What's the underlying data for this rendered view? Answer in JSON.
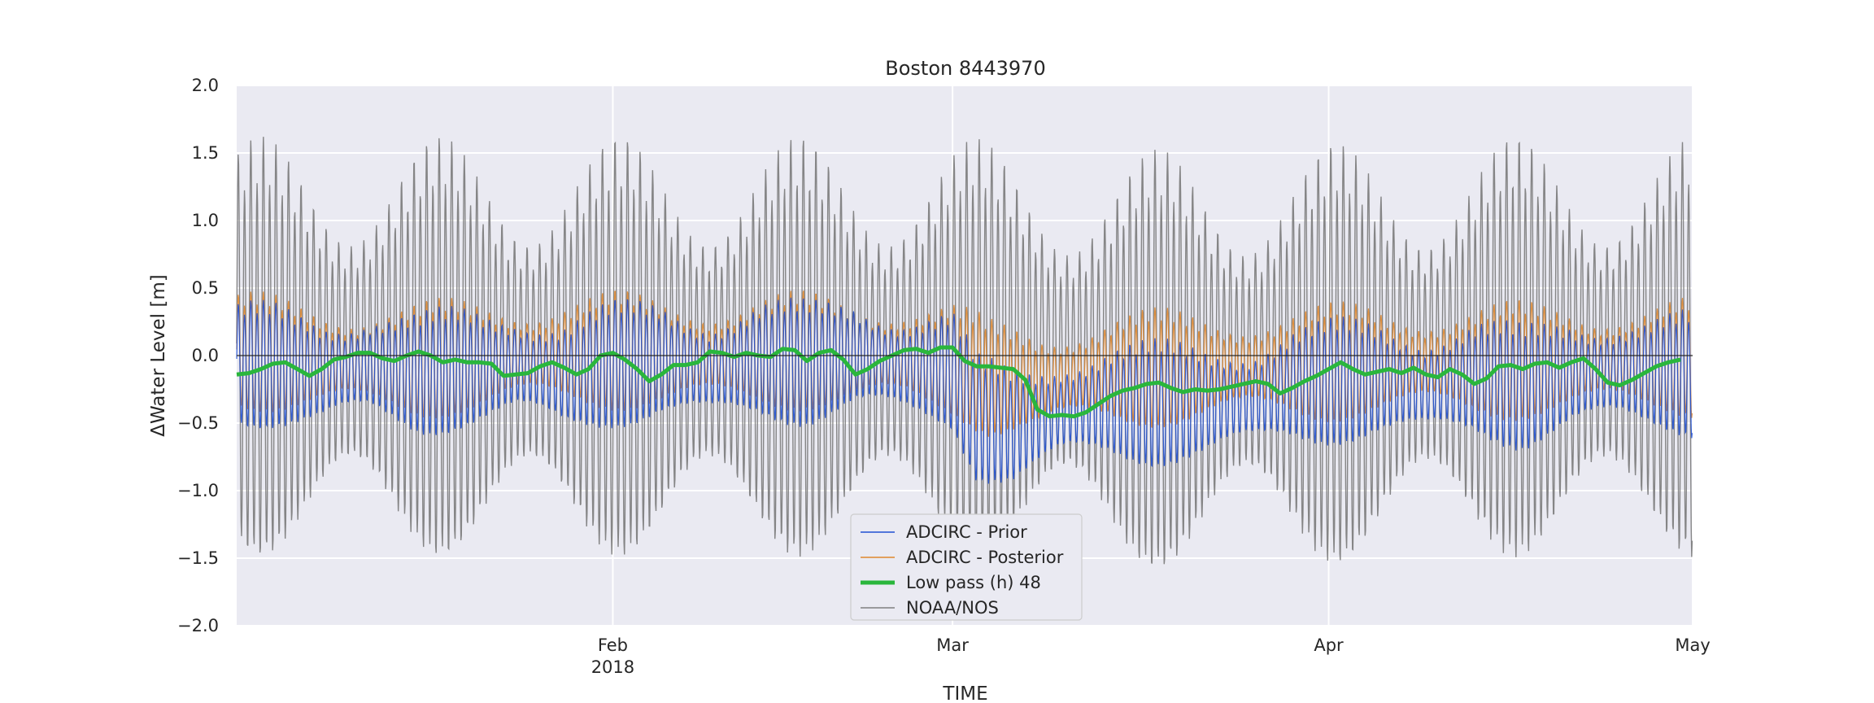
{
  "chart_data": {
    "type": "line",
    "title": "Boston  8443970",
    "xlabel": "TIME",
    "ylabel": "ΔWater Level [m]",
    "ylim": [
      -2.0,
      2.0
    ],
    "xlim": [
      "2018-01-01",
      "2018-05-01"
    ],
    "x_ticks": [
      {
        "date": "2018-02-01",
        "label": "Feb",
        "sublabel": "2018"
      },
      {
        "date": "2018-03-01",
        "label": "Mar",
        "sublabel": ""
      },
      {
        "date": "2018-04-01",
        "label": "Apr",
        "sublabel": ""
      },
      {
        "date": "2018-05-01",
        "label": "May",
        "sublabel": ""
      }
    ],
    "y_ticks": [
      {
        "value": 2.0,
        "label": "2.0"
      },
      {
        "value": 1.5,
        "label": "1.5"
      },
      {
        "value": 1.0,
        "label": "1.0"
      },
      {
        "value": 0.5,
        "label": "0.5"
      },
      {
        "value": 0.0,
        "label": "0.0"
      },
      {
        "value": -0.5,
        "label": "−0.5"
      },
      {
        "value": -1.0,
        "label": "−1.0"
      },
      {
        "value": -1.5,
        "label": "−1.5"
      },
      {
        "value": -2.0,
        "label": "−2.0"
      }
    ],
    "grid": true,
    "legend_position": "lower-center",
    "series": [
      {
        "name": "ADCIRC - Prior",
        "color": "#1f4fd1",
        "style": "oscillating",
        "tide_amplitude": 0.42,
        "envelope_points": [
          [
            "2018-01-01",
            -0.05
          ],
          [
            "2018-01-04",
            -0.06
          ],
          [
            "2018-01-08",
            -0.1
          ],
          [
            "2018-01-12",
            -0.05
          ],
          [
            "2018-01-16",
            -0.12
          ],
          [
            "2018-01-20",
            -0.08
          ],
          [
            "2018-01-24",
            -0.05
          ],
          [
            "2018-01-28",
            -0.12
          ],
          [
            "2018-02-01",
            -0.05
          ],
          [
            "2018-02-05",
            -0.02
          ],
          [
            "2018-02-09",
            -0.08
          ],
          [
            "2018-02-13",
            -0.02
          ],
          [
            "2018-02-17",
            -0.04
          ],
          [
            "2018-02-21",
            0.02
          ],
          [
            "2018-02-25",
            -0.06
          ],
          [
            "2018-03-01",
            -0.1
          ],
          [
            "2018-03-03",
            -0.45
          ],
          [
            "2018-03-06",
            -0.5
          ],
          [
            "2018-03-10",
            -0.38
          ],
          [
            "2018-03-14",
            -0.33
          ],
          [
            "2018-03-18",
            -0.34
          ],
          [
            "2018-03-22",
            -0.32
          ],
          [
            "2018-03-26",
            -0.28
          ],
          [
            "2018-03-29",
            -0.2
          ],
          [
            "2018-04-01",
            -0.18
          ],
          [
            "2018-04-05",
            -0.16
          ],
          [
            "2018-04-09",
            -0.2
          ],
          [
            "2018-04-13",
            -0.15
          ],
          [
            "2018-04-17",
            -0.22
          ],
          [
            "2018-04-21",
            -0.12
          ],
          [
            "2018-04-25",
            -0.1
          ],
          [
            "2018-05-01",
            -0.12
          ]
        ]
      },
      {
        "name": "ADCIRC - Posterior",
        "color": "#e0872c",
        "style": "oscillating",
        "tide_amplitude": 0.42,
        "envelope_points": [
          [
            "2018-01-01",
            0.02
          ],
          [
            "2018-01-08",
            -0.03
          ],
          [
            "2018-01-16",
            -0.05
          ],
          [
            "2018-01-24",
            0.0
          ],
          [
            "2018-02-01",
            0.02
          ],
          [
            "2018-02-09",
            0.0
          ],
          [
            "2018-02-17",
            0.02
          ],
          [
            "2018-02-25",
            0.0
          ],
          [
            "2018-03-01",
            -0.05
          ],
          [
            "2018-03-04",
            -0.18
          ],
          [
            "2018-03-08",
            -0.2
          ],
          [
            "2018-03-14",
            -0.12
          ],
          [
            "2018-03-22",
            -0.1
          ],
          [
            "2018-03-29",
            -0.08
          ],
          [
            "2018-04-05",
            -0.05
          ],
          [
            "2018-04-13",
            -0.06
          ],
          [
            "2018-04-21",
            -0.04
          ],
          [
            "2018-05-01",
            -0.03
          ]
        ]
      },
      {
        "name": "Low pass (h) 48",
        "color": "#2ab63c",
        "style": "smooth",
        "points": [
          [
            "2018-01-01",
            -0.14
          ],
          [
            "2018-01-02",
            -0.13
          ],
          [
            "2018-01-03",
            -0.1
          ],
          [
            "2018-01-04",
            -0.06
          ],
          [
            "2018-01-05",
            -0.05
          ],
          [
            "2018-01-06",
            -0.1
          ],
          [
            "2018-01-07",
            -0.15
          ],
          [
            "2018-01-08",
            -0.1
          ],
          [
            "2018-01-09",
            -0.03
          ],
          [
            "2018-01-10",
            -0.01
          ],
          [
            "2018-01-11",
            0.02
          ],
          [
            "2018-01-12",
            0.02
          ],
          [
            "2018-01-13",
            -0.02
          ],
          [
            "2018-01-14",
            -0.04
          ],
          [
            "2018-01-15",
            0.0
          ],
          [
            "2018-01-16",
            0.03
          ],
          [
            "2018-01-17",
            0.0
          ],
          [
            "2018-01-18",
            -0.05
          ],
          [
            "2018-01-19",
            -0.03
          ],
          [
            "2018-01-20",
            -0.05
          ],
          [
            "2018-01-21",
            -0.05
          ],
          [
            "2018-01-22",
            -0.06
          ],
          [
            "2018-01-23",
            -0.15
          ],
          [
            "2018-01-24",
            -0.14
          ],
          [
            "2018-01-25",
            -0.13
          ],
          [
            "2018-01-26",
            -0.08
          ],
          [
            "2018-01-27",
            -0.05
          ],
          [
            "2018-01-28",
            -0.09
          ],
          [
            "2018-01-29",
            -0.14
          ],
          [
            "2018-01-30",
            -0.1
          ],
          [
            "2018-01-31",
            0.0
          ],
          [
            "2018-02-01",
            0.02
          ],
          [
            "2018-02-02",
            -0.03
          ],
          [
            "2018-02-03",
            -0.1
          ],
          [
            "2018-02-04",
            -0.19
          ],
          [
            "2018-02-05",
            -0.14
          ],
          [
            "2018-02-06",
            -0.07
          ],
          [
            "2018-02-07",
            -0.07
          ],
          [
            "2018-02-08",
            -0.05
          ],
          [
            "2018-02-09",
            0.03
          ],
          [
            "2018-02-10",
            0.02
          ],
          [
            "2018-02-11",
            -0.01
          ],
          [
            "2018-02-12",
            0.02
          ],
          [
            "2018-02-13",
            0.0
          ],
          [
            "2018-02-14",
            -0.01
          ],
          [
            "2018-02-15",
            0.05
          ],
          [
            "2018-02-16",
            0.04
          ],
          [
            "2018-02-17",
            -0.04
          ],
          [
            "2018-02-18",
            0.02
          ],
          [
            "2018-02-19",
            0.04
          ],
          [
            "2018-02-20",
            -0.03
          ],
          [
            "2018-02-21",
            -0.14
          ],
          [
            "2018-02-22",
            -0.1
          ],
          [
            "2018-02-23",
            -0.04
          ],
          [
            "2018-02-24",
            0.0
          ],
          [
            "2018-02-25",
            0.04
          ],
          [
            "2018-02-26",
            0.05
          ],
          [
            "2018-02-27",
            0.02
          ],
          [
            "2018-02-28",
            0.06
          ],
          [
            "2018-03-01",
            0.06
          ],
          [
            "2018-03-02",
            -0.04
          ],
          [
            "2018-03-03",
            -0.08
          ],
          [
            "2018-03-04",
            -0.08
          ],
          [
            "2018-03-05",
            -0.09
          ],
          [
            "2018-03-06",
            -0.1
          ],
          [
            "2018-03-07",
            -0.18
          ],
          [
            "2018-03-08",
            -0.4
          ],
          [
            "2018-03-09",
            -0.45
          ],
          [
            "2018-03-10",
            -0.44
          ],
          [
            "2018-03-11",
            -0.45
          ],
          [
            "2018-03-12",
            -0.42
          ],
          [
            "2018-03-13",
            -0.36
          ],
          [
            "2018-03-14",
            -0.3
          ],
          [
            "2018-03-15",
            -0.26
          ],
          [
            "2018-03-16",
            -0.24
          ],
          [
            "2018-03-17",
            -0.21
          ],
          [
            "2018-03-18",
            -0.2
          ],
          [
            "2018-03-19",
            -0.24
          ],
          [
            "2018-03-20",
            -0.27
          ],
          [
            "2018-03-21",
            -0.25
          ],
          [
            "2018-03-22",
            -0.26
          ],
          [
            "2018-03-23",
            -0.25
          ],
          [
            "2018-03-24",
            -0.23
          ],
          [
            "2018-03-25",
            -0.21
          ],
          [
            "2018-03-26",
            -0.19
          ],
          [
            "2018-03-27",
            -0.21
          ],
          [
            "2018-03-28",
            -0.28
          ],
          [
            "2018-03-29",
            -0.24
          ],
          [
            "2018-03-30",
            -0.19
          ],
          [
            "2018-03-31",
            -0.15
          ],
          [
            "2018-04-01",
            -0.1
          ],
          [
            "2018-04-02",
            -0.05
          ],
          [
            "2018-04-03",
            -0.1
          ],
          [
            "2018-04-04",
            -0.14
          ],
          [
            "2018-04-05",
            -0.12
          ],
          [
            "2018-04-06",
            -0.1
          ],
          [
            "2018-04-07",
            -0.13
          ],
          [
            "2018-04-08",
            -0.09
          ],
          [
            "2018-04-09",
            -0.14
          ],
          [
            "2018-04-10",
            -0.16
          ],
          [
            "2018-04-11",
            -0.1
          ],
          [
            "2018-04-12",
            -0.14
          ],
          [
            "2018-04-13",
            -0.21
          ],
          [
            "2018-04-14",
            -0.17
          ],
          [
            "2018-04-15",
            -0.08
          ],
          [
            "2018-04-16",
            -0.07
          ],
          [
            "2018-04-17",
            -0.1
          ],
          [
            "2018-04-18",
            -0.06
          ],
          [
            "2018-04-19",
            -0.05
          ],
          [
            "2018-04-20",
            -0.09
          ],
          [
            "2018-04-21",
            -0.05
          ],
          [
            "2018-04-22",
            -0.02
          ],
          [
            "2018-04-23",
            -0.1
          ],
          [
            "2018-04-24",
            -0.2
          ],
          [
            "2018-04-25",
            -0.22
          ],
          [
            "2018-04-26",
            -0.18
          ],
          [
            "2018-04-27",
            -0.13
          ],
          [
            "2018-04-28",
            -0.08
          ],
          [
            "2018-04-29",
            -0.05
          ],
          [
            "2018-04-30",
            -0.03
          ],
          [
            "2018-05-01",
            -0.03
          ],
          [
            "2018-05-02",
            -0.06
          ],
          [
            "2018-05-03",
            -0.09
          ],
          [
            "2018-05-04",
            -0.1
          ]
        ]
      },
      {
        "name": "NOAA/NOS",
        "color": "#808080",
        "style": "oscillating",
        "tide_amplitude": 1.45,
        "envelope_points": [
          [
            "2018-01-01",
            0.0
          ],
          [
            "2018-01-15",
            0.0
          ],
          [
            "2018-02-01",
            0.0
          ],
          [
            "2018-02-15",
            0.0
          ],
          [
            "2018-03-01",
            0.0
          ],
          [
            "2018-03-15",
            -0.1
          ],
          [
            "2018-04-01",
            -0.05
          ],
          [
            "2018-04-15",
            0.0
          ],
          [
            "2018-05-01",
            0.0
          ]
        ]
      }
    ]
  }
}
